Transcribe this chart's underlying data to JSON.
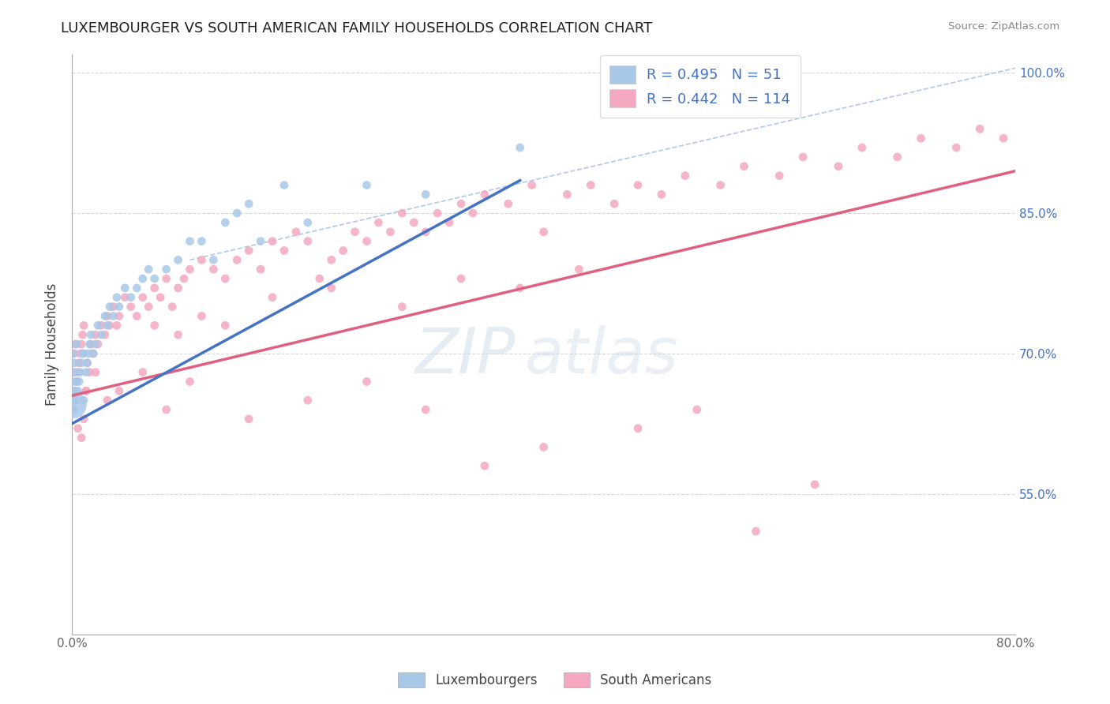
{
  "title": "LUXEMBOURGER VS SOUTH AMERICAN FAMILY HOUSEHOLDS CORRELATION CHART",
  "source": "Source: ZipAtlas.com",
  "ylabel": "Family Households",
  "xlim": [
    0.0,
    0.8
  ],
  "ylim": [
    0.4,
    1.02
  ],
  "xticks": [
    0.0,
    0.2,
    0.4,
    0.6,
    0.8
  ],
  "xticklabels": [
    "0.0%",
    "",
    "",
    "",
    "80.0%"
  ],
  "ytick_vals": [
    0.55,
    0.7,
    0.85,
    1.0
  ],
  "ytick_labels": [
    "55.0%",
    "70.0%",
    "85.0%",
    "100.0%"
  ],
  "R_lux": 0.495,
  "N_lux": 51,
  "R_sa": 0.442,
  "N_sa": 114,
  "lux_color": "#a8c8e8",
  "sa_color": "#f4a8c0",
  "lux_line_color": "#4472C4",
  "sa_line_color": "#e06080",
  "ref_line_color": "#b0c8e8",
  "watermark_zip": "ZIP",
  "watermark_atlas": "atlas",
  "grid_color": "#d8d8d8",
  "lux_x": [
    0.001,
    0.001,
    0.001,
    0.002,
    0.002,
    0.003,
    0.003,
    0.004,
    0.004,
    0.005,
    0.006,
    0.007,
    0.008,
    0.009,
    0.01,
    0.01,
    0.012,
    0.013,
    0.014,
    0.015,
    0.016,
    0.018,
    0.02,
    0.022,
    0.025,
    0.028,
    0.03,
    0.032,
    0.035,
    0.038,
    0.04,
    0.045,
    0.05,
    0.055,
    0.06,
    0.065,
    0.07,
    0.08,
    0.09,
    0.1,
    0.11,
    0.12,
    0.13,
    0.14,
    0.15,
    0.16,
    0.18,
    0.2,
    0.25,
    0.3,
    0.38
  ],
  "lux_y": [
    0.64,
    0.67,
    0.7,
    0.66,
    0.69,
    0.65,
    0.68,
    0.67,
    0.71,
    0.66,
    0.67,
    0.68,
    0.69,
    0.7,
    0.65,
    0.7,
    0.68,
    0.69,
    0.7,
    0.71,
    0.72,
    0.7,
    0.71,
    0.73,
    0.72,
    0.74,
    0.73,
    0.75,
    0.74,
    0.76,
    0.75,
    0.77,
    0.76,
    0.77,
    0.78,
    0.79,
    0.78,
    0.79,
    0.8,
    0.82,
    0.82,
    0.8,
    0.84,
    0.85,
    0.86,
    0.82,
    0.88,
    0.84,
    0.88,
    0.87,
    0.92
  ],
  "lux_sizes": [
    60,
    60,
    60,
    60,
    60,
    60,
    60,
    60,
    60,
    60,
    60,
    60,
    60,
    60,
    60,
    60,
    60,
    60,
    60,
    60,
    60,
    60,
    60,
    60,
    60,
    60,
    60,
    60,
    60,
    60,
    60,
    60,
    60,
    60,
    60,
    60,
    60,
    60,
    60,
    60,
    60,
    60,
    60,
    60,
    60,
    60,
    60,
    60,
    60,
    60,
    60
  ],
  "lux_large_x": [
    0.001
  ],
  "lux_large_y": [
    0.645
  ],
  "lux_large_size": [
    600
  ],
  "sa_x": [
    0.001,
    0.001,
    0.002,
    0.002,
    0.003,
    0.003,
    0.004,
    0.005,
    0.006,
    0.007,
    0.008,
    0.009,
    0.01,
    0.01,
    0.012,
    0.013,
    0.015,
    0.016,
    0.018,
    0.02,
    0.022,
    0.025,
    0.028,
    0.03,
    0.032,
    0.035,
    0.038,
    0.04,
    0.045,
    0.05,
    0.055,
    0.06,
    0.065,
    0.07,
    0.075,
    0.08,
    0.085,
    0.09,
    0.095,
    0.1,
    0.11,
    0.12,
    0.13,
    0.14,
    0.15,
    0.16,
    0.17,
    0.18,
    0.19,
    0.2,
    0.21,
    0.22,
    0.23,
    0.24,
    0.25,
    0.26,
    0.27,
    0.28,
    0.29,
    0.3,
    0.31,
    0.32,
    0.33,
    0.34,
    0.35,
    0.37,
    0.39,
    0.4,
    0.42,
    0.44,
    0.46,
    0.48,
    0.5,
    0.52,
    0.55,
    0.57,
    0.6,
    0.62,
    0.65,
    0.67,
    0.7,
    0.72,
    0.75,
    0.77,
    0.79,
    0.005,
    0.008,
    0.012,
    0.02,
    0.03,
    0.04,
    0.06,
    0.08,
    0.1,
    0.15,
    0.2,
    0.25,
    0.3,
    0.35,
    0.4,
    0.07,
    0.09,
    0.11,
    0.13,
    0.17,
    0.22,
    0.28,
    0.33,
    0.38,
    0.43,
    0.48,
    0.53,
    0.58,
    0.63
  ],
  "sa_y": [
    0.64,
    0.68,
    0.65,
    0.7,
    0.66,
    0.71,
    0.67,
    0.68,
    0.69,
    0.7,
    0.71,
    0.72,
    0.63,
    0.73,
    0.66,
    0.69,
    0.68,
    0.71,
    0.7,
    0.72,
    0.71,
    0.73,
    0.72,
    0.74,
    0.73,
    0.75,
    0.73,
    0.74,
    0.76,
    0.75,
    0.74,
    0.76,
    0.75,
    0.77,
    0.76,
    0.78,
    0.75,
    0.77,
    0.78,
    0.79,
    0.8,
    0.79,
    0.78,
    0.8,
    0.81,
    0.79,
    0.82,
    0.81,
    0.83,
    0.82,
    0.78,
    0.8,
    0.81,
    0.83,
    0.82,
    0.84,
    0.83,
    0.85,
    0.84,
    0.83,
    0.85,
    0.84,
    0.86,
    0.85,
    0.87,
    0.86,
    0.88,
    0.83,
    0.87,
    0.88,
    0.86,
    0.88,
    0.87,
    0.89,
    0.88,
    0.9,
    0.89,
    0.91,
    0.9,
    0.92,
    0.91,
    0.93,
    0.92,
    0.94,
    0.93,
    0.62,
    0.61,
    0.66,
    0.68,
    0.65,
    0.66,
    0.68,
    0.64,
    0.67,
    0.63,
    0.65,
    0.67,
    0.64,
    0.58,
    0.6,
    0.73,
    0.72,
    0.74,
    0.73,
    0.76,
    0.77,
    0.75,
    0.78,
    0.77,
    0.79,
    0.62,
    0.64,
    0.51,
    0.56
  ],
  "sa_sizes": [
    60,
    60,
    60,
    60,
    60,
    60,
    60,
    60,
    60,
    60,
    60,
    60,
    60,
    60,
    60,
    60,
    60,
    60,
    60,
    60,
    60,
    60,
    60,
    60,
    60,
    60,
    60,
    60,
    60,
    60,
    60,
    60,
    60,
    60,
    60,
    60,
    60,
    60,
    60,
    60,
    60,
    60,
    60,
    60,
    60,
    60,
    60,
    60,
    60,
    60,
    60,
    60,
    60,
    60,
    60,
    60,
    60,
    60,
    60,
    60,
    60,
    60,
    60,
    60,
    60,
    60,
    60,
    60,
    60,
    60,
    60,
    60,
    60,
    60,
    60,
    60,
    60,
    60,
    60,
    60,
    60,
    60,
    60,
    60,
    60,
    60,
    60,
    60,
    60,
    60,
    60,
    60,
    60,
    60,
    60,
    60,
    60,
    60,
    60,
    60,
    60,
    60,
    60,
    60,
    60,
    60,
    60,
    60,
    60,
    60,
    60,
    60,
    60,
    60
  ],
  "lux_line_x0": 0.0,
  "lux_line_y0": 0.625,
  "lux_line_x1": 0.38,
  "lux_line_y1": 0.885,
  "sa_line_x0": 0.0,
  "sa_line_y0": 0.655,
  "sa_line_x1": 0.8,
  "sa_line_y1": 0.895,
  "ref_line_x0": 0.1,
  "ref_line_y0": 0.8,
  "ref_line_x1": 0.8,
  "ref_line_y1": 1.005
}
